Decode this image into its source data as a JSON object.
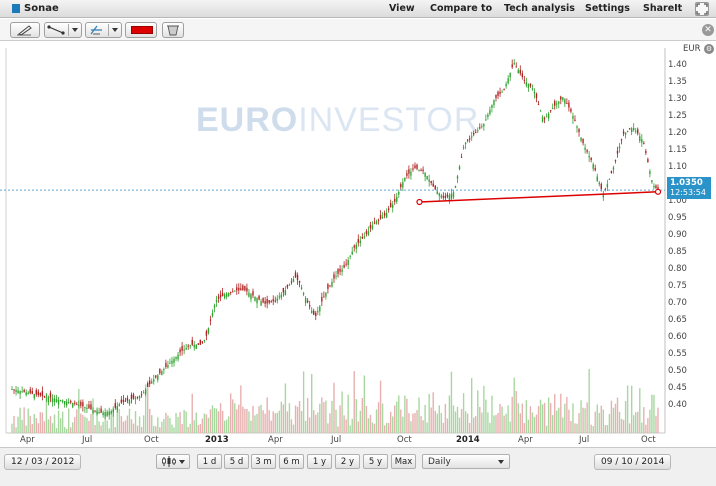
{
  "app": {
    "title": "Sonae"
  },
  "menu": [
    {
      "label": "View",
      "name": "menu-view"
    },
    {
      "label": "Compare to",
      "name": "menu-compare-to"
    },
    {
      "label": "Tech analysis",
      "name": "menu-tech-analysis"
    },
    {
      "label": "Settings",
      "name": "menu-settings"
    },
    {
      "label": "ShareIt",
      "name": "menu-shareit"
    }
  ],
  "toolbar": {
    "tools": [
      "pencil-tool",
      "trend-line-tool",
      "fibonacci-tool",
      "color-picker",
      "eraser-tool"
    ],
    "line_color": "#dd0000"
  },
  "watermark": {
    "bold": "EURO",
    "light": "INVESTOR"
  },
  "chart_data": {
    "type": "candlestick",
    "currency": "EUR",
    "y_ticks": [
      "1.40",
      "1.35",
      "1.30",
      "1.25",
      "1.20",
      "1.15",
      "1.10",
      "1.05",
      "1.00",
      "0.95",
      "0.90",
      "0.85",
      "0.80",
      "0.75",
      "0.70",
      "0.65",
      "0.60",
      "0.55",
      "0.50",
      "0.45",
      "0.40"
    ],
    "ylim": [
      0.365,
      1.425
    ],
    "x_labels": [
      {
        "text": "Apr",
        "year": false
      },
      {
        "text": "Jul",
        "year": false
      },
      {
        "text": "Oct",
        "year": false
      },
      {
        "text": "2013",
        "year": true
      },
      {
        "text": "Apr",
        "year": false
      },
      {
        "text": "Jul",
        "year": false
      },
      {
        "text": "Oct",
        "year": false
      },
      {
        "text": "2014",
        "year": true
      },
      {
        "text": "Apr",
        "year": false
      },
      {
        "text": "Jul",
        "year": false
      },
      {
        "text": "Oct",
        "year": false
      }
    ],
    "close_series": [
      [
        0,
        0.45
      ],
      [
        3,
        0.44
      ],
      [
        6,
        0.43
      ],
      [
        9,
        0.42
      ],
      [
        12,
        0.41
      ],
      [
        14,
        0.4
      ],
      [
        16,
        0.39
      ],
      [
        18,
        0.38
      ],
      [
        20,
        0.385
      ],
      [
        22,
        0.41
      ],
      [
        24,
        0.42
      ],
      [
        26,
        0.43
      ],
      [
        28,
        0.47
      ],
      [
        30,
        0.5
      ],
      [
        32,
        0.53
      ],
      [
        34,
        0.56
      ],
      [
        36,
        0.58
      ],
      [
        38,
        0.58
      ],
      [
        39,
        0.6
      ],
      [
        41,
        0.71
      ],
      [
        43,
        0.73
      ],
      [
        45,
        0.74
      ],
      [
        47,
        0.74
      ],
      [
        49,
        0.72
      ],
      [
        51,
        0.7
      ],
      [
        53,
        0.71
      ],
      [
        55,
        0.74
      ],
      [
        57,
        0.78
      ],
      [
        58,
        0.76
      ],
      [
        59,
        0.72
      ],
      [
        61,
        0.66
      ],
      [
        63,
        0.73
      ],
      [
        65,
        0.78
      ],
      [
        67,
        0.81
      ],
      [
        69,
        0.87
      ],
      [
        71,
        0.9
      ],
      [
        73,
        0.94
      ],
      [
        75,
        0.96
      ],
      [
        77,
        1.0
      ],
      [
        79,
        1.07
      ],
      [
        81,
        1.1
      ],
      [
        83,
        1.09
      ],
      [
        85,
        1.04
      ],
      [
        87,
        1.01
      ],
      [
        89,
        1.03
      ],
      [
        91,
        1.17
      ],
      [
        93,
        1.2
      ],
      [
        95,
        1.23
      ],
      [
        97,
        1.3
      ],
      [
        99,
        1.33
      ],
      [
        101,
        1.41
      ],
      [
        103,
        1.36
      ],
      [
        105,
        1.33
      ],
      [
        107,
        1.24
      ],
      [
        109,
        1.28
      ],
      [
        111,
        1.31
      ],
      [
        113,
        1.25
      ],
      [
        115,
        1.17
      ],
      [
        117,
        1.11
      ],
      [
        119,
        1.02
      ],
      [
        121,
        1.1
      ],
      [
        123,
        1.2
      ],
      [
        125,
        1.22
      ],
      [
        127,
        1.18
      ],
      [
        129,
        1.05
      ],
      [
        130,
        1.035
      ]
    ],
    "trend_line": {
      "from": [
        82,
        1.0
      ],
      "to": [
        130,
        1.03
      ]
    },
    "last_price": {
      "value": "1.0350",
      "time": "12:53:54"
    },
    "grid": false,
    "legend": "none"
  },
  "bottom": {
    "start_date": "12 / 03 / 2012",
    "end_date": "09 / 10 / 2014",
    "ranges": [
      "1 d",
      "5 d",
      "3 m",
      "6 m",
      "1 y",
      "2 y",
      "5 y",
      "Max"
    ],
    "interval": "Daily"
  }
}
